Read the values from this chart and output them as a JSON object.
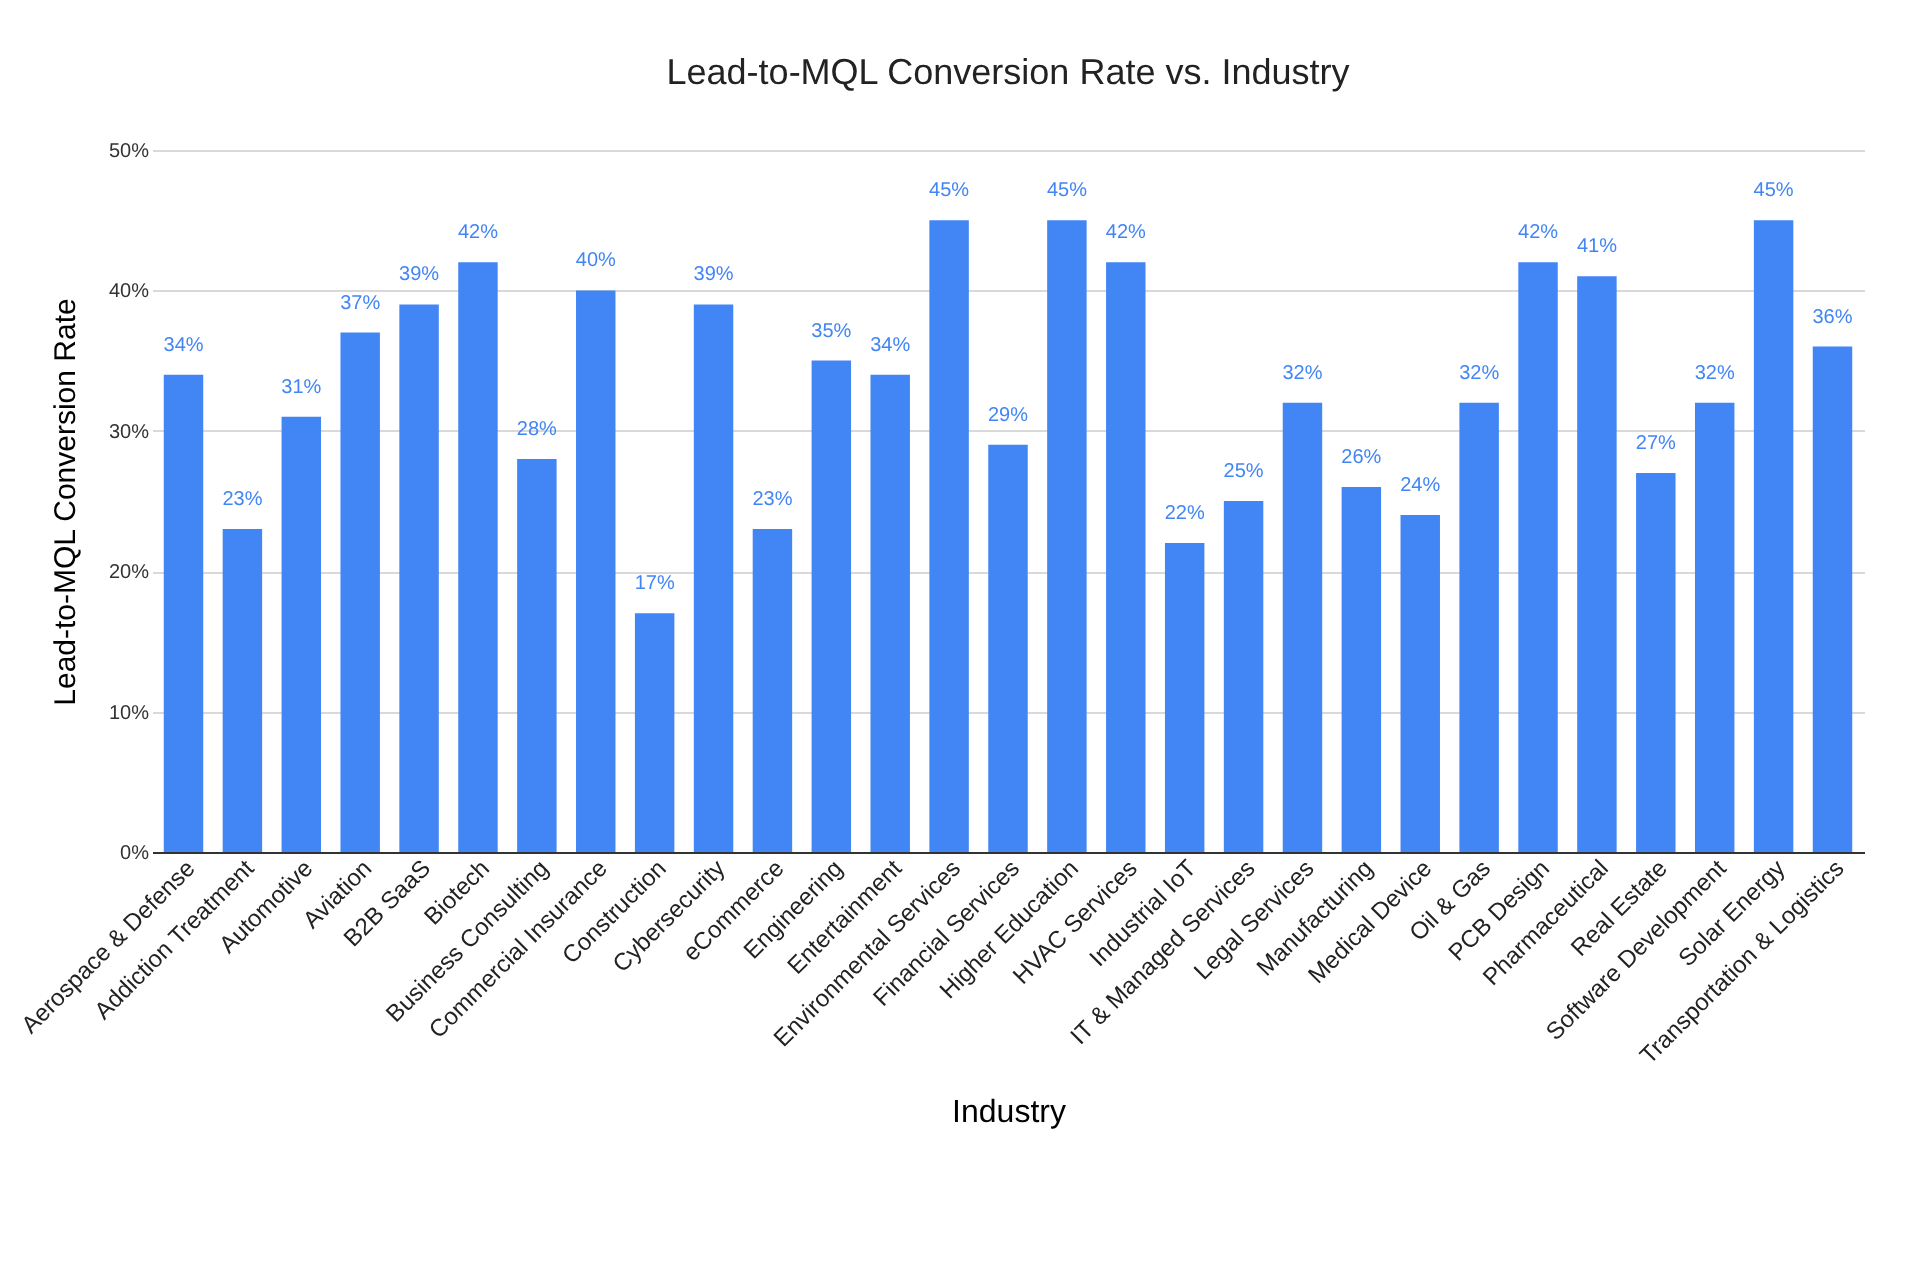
{
  "chart_data": {
    "type": "bar",
    "title": "Lead-to-MQL Conversion Rate vs. Industry",
    "xlabel": "Industry",
    "ylabel": "Lead-to-MQL Conversion Rate",
    "categories": [
      "Aerospace & Defense",
      "Addiction Treatment",
      "Automotive",
      "Aviation",
      "B2B SaaS",
      "Biotech",
      "Business Consulting",
      "Commercial Insurance",
      "Construction",
      "Cybersecurity",
      "eCommerce",
      "Engineering",
      "Entertainment",
      "Environmental Services",
      "Financial Services",
      "Higher Education",
      "HVAC Services",
      "Industrial IoT",
      "IT & Managed Services",
      "Legal Services",
      "Manufacturing",
      "Medical Device",
      "Oil & Gas",
      "PCB Design",
      "Pharmaceutical",
      "Real Estate",
      "Software Development",
      "Solar Energy",
      "Transportation & Logistics"
    ],
    "values": [
      34,
      23,
      31,
      37,
      39,
      42,
      28,
      40,
      17,
      39,
      23,
      35,
      34,
      45,
      29,
      45,
      42,
      22,
      25,
      32,
      26,
      24,
      32,
      42,
      41,
      27,
      32,
      45,
      36
    ],
    "value_labels": [
      "34%",
      "23%",
      "31%",
      "37%",
      "39%",
      "42%",
      "28%",
      "40%",
      "17%",
      "39%",
      "23%",
      "35%",
      "34%",
      "45%",
      "29%",
      "45%",
      "42%",
      "22%",
      "25%",
      "32%",
      "26%",
      "24%",
      "32%",
      "42%",
      "41%",
      "27%",
      "32%",
      "45%",
      "36%"
    ],
    "color": "#4285f4",
    "ylim": [
      0,
      50
    ],
    "yticks": [
      {
        "value": 0,
        "label": "0%"
      },
      {
        "value": 10,
        "label": "10%"
      },
      {
        "value": 20,
        "label": "20%"
      },
      {
        "value": 30,
        "label": "30%"
      },
      {
        "value": 40,
        "label": "40%"
      },
      {
        "value": 50,
        "label": "50%"
      }
    ],
    "grid": "y"
  }
}
